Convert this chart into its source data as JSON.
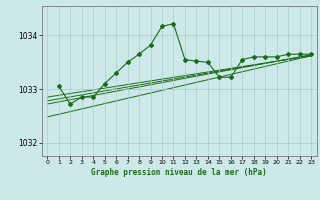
{
  "title": "Graphe pression niveau de la mer (hPa)",
  "background_color": "#cce8e8",
  "plot_bg_color": "#cce8e8",
  "grid_color": "#aacccc",
  "line_color": "#1a6b1a",
  "xlim": [
    -0.5,
    23.5
  ],
  "ylim": [
    1031.75,
    1034.55
  ],
  "yticks": [
    1032,
    1033,
    1034
  ],
  "xticks": [
    0,
    1,
    2,
    3,
    4,
    5,
    6,
    7,
    8,
    9,
    10,
    11,
    12,
    13,
    14,
    15,
    16,
    17,
    18,
    19,
    20,
    21,
    22,
    23
  ],
  "series": {
    "main": {
      "x": [
        1,
        2,
        3,
        4,
        5,
        6,
        7,
        8,
        9,
        10,
        11,
        12,
        13,
        14,
        15,
        16,
        17,
        18,
        19,
        20,
        21,
        22,
        23
      ],
      "y": [
        1033.05,
        1032.72,
        1032.85,
        1032.85,
        1033.1,
        1033.3,
        1033.5,
        1033.65,
        1033.82,
        1034.17,
        1034.22,
        1033.55,
        1033.52,
        1033.5,
        1033.22,
        1033.22,
        1033.55,
        1033.6,
        1033.6,
        1033.6,
        1033.65,
        1033.65,
        1033.65
      ]
    },
    "line1": {
      "x": [
        0,
        23
      ],
      "y": [
        1032.85,
        1033.62
      ]
    },
    "line2": {
      "x": [
        0,
        23
      ],
      "y": [
        1032.78,
        1033.63
      ]
    },
    "line3": {
      "x": [
        0,
        23
      ],
      "y": [
        1032.72,
        1033.64
      ]
    },
    "line4": {
      "x": [
        0,
        23
      ],
      "y": [
        1032.48,
        1033.62
      ]
    }
  }
}
